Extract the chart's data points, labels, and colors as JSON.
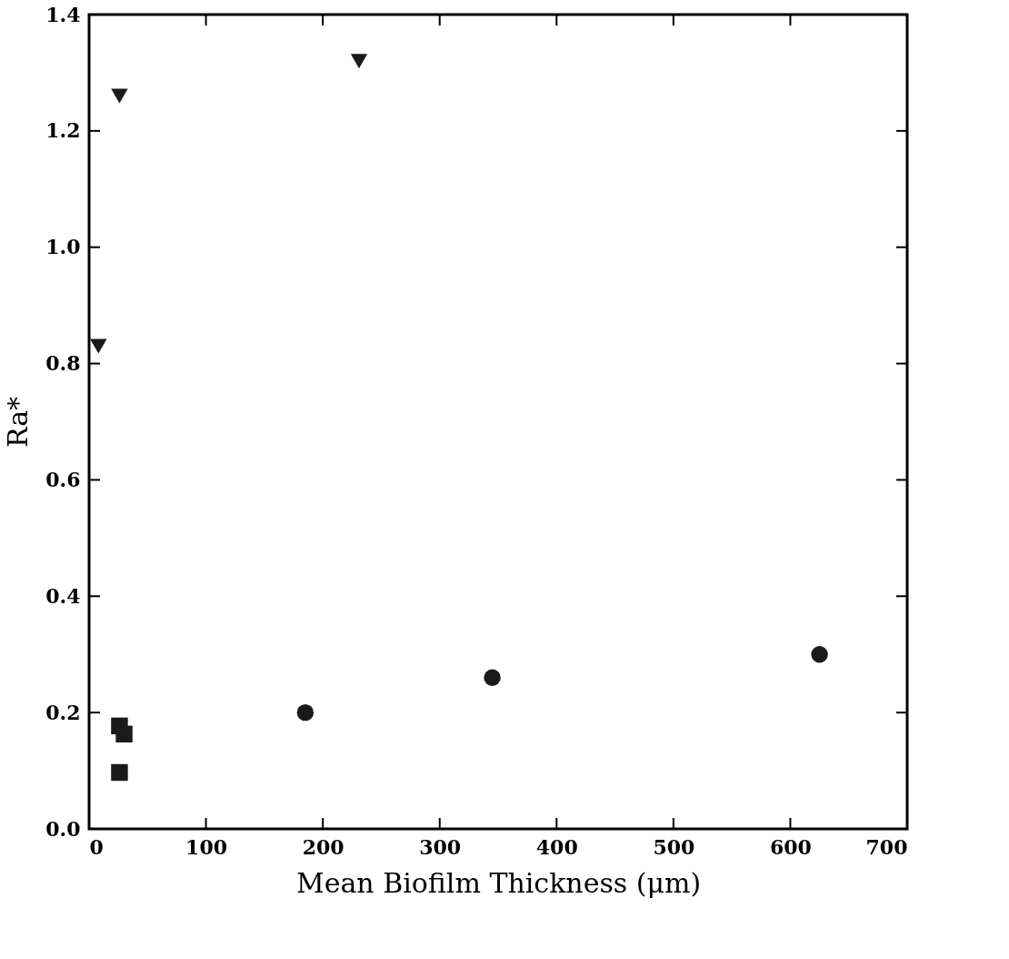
{
  "chart_data": {
    "type": "scatter",
    "xlabel": "Mean Biofilm Thickness (μm)",
    "ylabel": "Ra*",
    "xlim": [
      0,
      700
    ],
    "ylim": [
      0,
      1.4
    ],
    "xticks": [
      0,
      100,
      200,
      300,
      400,
      500,
      600,
      700
    ],
    "yticks": [
      {
        "value": 0,
        "label": "0.0"
      },
      0.2,
      0.4,
      0.6,
      0.8,
      {
        "value": 1,
        "label": "1.0"
      },
      1.2,
      1.4
    ],
    "grid": false,
    "series": [
      {
        "color": "#1a1a1a",
        "marker": "triangle-down",
        "x": [
          8,
          26,
          231
        ],
        "values": [
          0.83,
          1.26,
          1.32
        ]
      },
      {
        "color": "#1a1a1a",
        "marker": "square",
        "x": [
          26,
          30,
          26
        ],
        "values": [
          0.177,
          0.163,
          0.097
        ]
      },
      {
        "color": "#1a1a1a",
        "marker": "circle",
        "x": [
          185,
          345,
          625
        ],
        "values": [
          0.2,
          0.26,
          0.3
        ]
      }
    ]
  }
}
